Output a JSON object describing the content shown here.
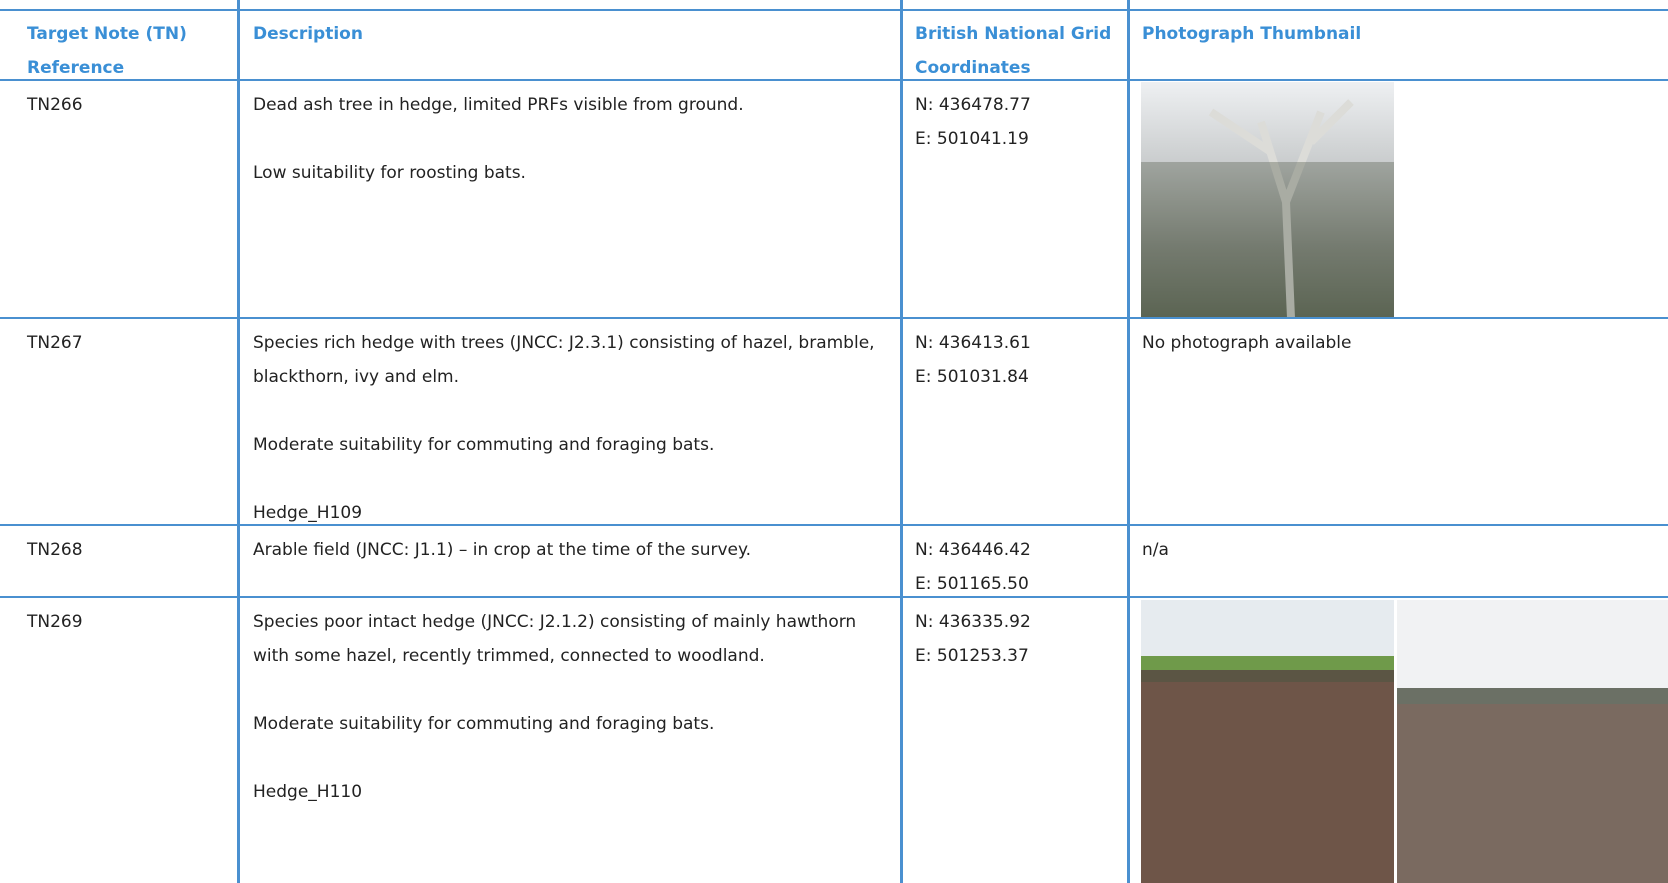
{
  "table": {
    "columns": [
      "Target Note (TN) Reference",
      "Description",
      "British National Grid Coordinates",
      "Photograph Thumbnail"
    ],
    "rows": [
      {
        "reference": "TN266",
        "description": [
          "Dead ash tree in hedge, limited PRFs visible from ground.",
          "Low suitability for roosting bats."
        ],
        "coordinates": [
          "N: 436478.77",
          "E: 501041.19"
        ]
      },
      {
        "reference": "TN267",
        "description": [
          "Species rich hedge with trees (JNCC: J2.3.1) consisting of hazel, bramble, blackthorn, ivy and elm.",
          "Moderate suitability for commuting and foraging bats.",
          "Hedge_H109"
        ],
        "coordinates": [
          "N: 436413.61",
          "E: 501031.84"
        ],
        "photo": "No photograph available"
      },
      {
        "reference": "TN268",
        "description": [
          "Arable field (JNCC: J1.1) – in crop at the time of the survey."
        ],
        "coordinates": [
          "N: 436446.42",
          "E: 501165.50"
        ],
        "photo": "n/a"
      },
      {
        "reference": "TN269",
        "description": [
          "Species poor intact hedge (JNCC: J2.1.2) consisting of mainly hawthorn with some hazel, recently trimmed, connected to woodland.",
          "Moderate suitability for commuting and foraging bats.",
          "Hedge_H110"
        ],
        "coordinates": [
          "N: 436335.92",
          "E: 501253.37"
        ]
      }
    ]
  }
}
